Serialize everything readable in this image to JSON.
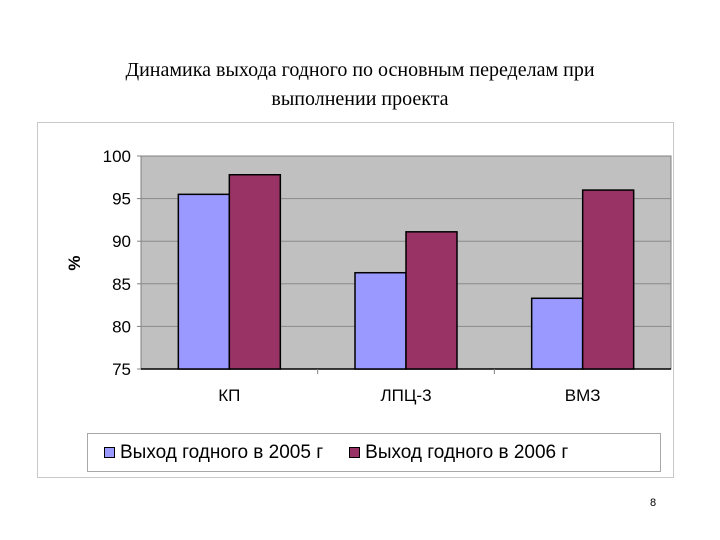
{
  "slide": {
    "title": "Динамика выхода годного по основным переделам при выполнении проекта",
    "title_line1": "Динамика выхода годного по основным переделам при",
    "title_line2": "выполнении проекта",
    "page_number": "8"
  },
  "colors": {
    "series_2005": "#9999FF",
    "series_2006": "#993366",
    "plot_background": "#C0C0C0",
    "gridline": "#8a8a8a"
  },
  "chart_data": {
    "type": "bar",
    "title": "Динамика выхода годного по основным переделам при выполнении проекта",
    "xlabel": "",
    "ylabel": "%",
    "categories": [
      "КП",
      "ЛПЦ-3",
      "ВМЗ"
    ],
    "series": [
      {
        "name": "Выход годного в 2005 г",
        "color": "#9999FF",
        "values": [
          95.5,
          86.3,
          83.3
        ]
      },
      {
        "name": "Выход годного в 2006 г",
        "color": "#993366",
        "values": [
          97.8,
          91.1,
          96.0
        ]
      }
    ],
    "ylim": [
      75,
      100
    ],
    "yticks": [
      75,
      80,
      85,
      90,
      95,
      100
    ],
    "grid": true,
    "legend_position": "bottom"
  },
  "legend": {
    "items": [
      {
        "label": "Выход годного в 2005 г",
        "color": "#9999FF"
      },
      {
        "label": "Выход годного в 2006 г",
        "color": "#993366"
      }
    ]
  }
}
